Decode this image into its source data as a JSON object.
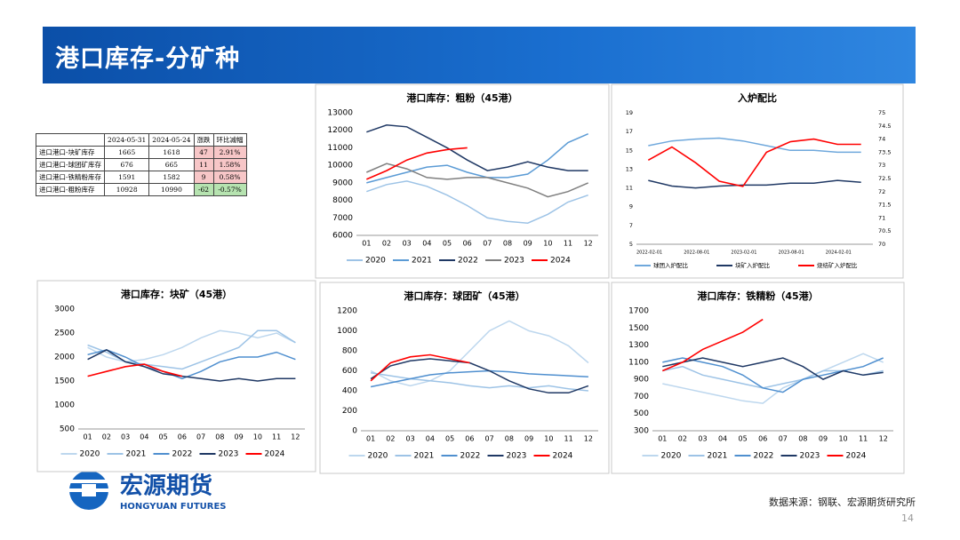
{
  "header": {
    "title": "港口库存-分矿种"
  },
  "table": {
    "header": [
      "2024-05-31",
      "2024-05-24",
      "涨跌",
      "环比减幅"
    ],
    "rows": [
      [
        "进口港口-块矿库存",
        "1665",
        "1618",
        "47",
        "2.91%"
      ],
      [
        "进口港口-球团矿库存",
        "676",
        "665",
        "11",
        "1.58%"
      ],
      [
        "进口港口-铁精粉库存",
        "1591",
        "1582",
        "9",
        "0.58%"
      ],
      [
        "进口港口-粗粉库存",
        "10928",
        "10990",
        "-62",
        "-0.57%"
      ]
    ]
  },
  "footer": {
    "logo_cn": "宏源期货",
    "logo_en": "HONGYUAN FUTURES",
    "source": "数据来源：钢联、宏源期货研究所",
    "page": "14"
  },
  "chart_data": [
    {
      "type": "line",
      "title": "港口库存：粗粉（45港）",
      "categories": [
        "01",
        "02",
        "03",
        "04",
        "05",
        "06",
        "07",
        "08",
        "09",
        "10",
        "11",
        "12"
      ],
      "ylim": [
        6000,
        13000
      ],
      "yticks": [
        6000,
        7000,
        8000,
        9000,
        10000,
        11000,
        12000,
        13000
      ],
      "grid": false,
      "series": [
        {
          "name": "2020",
          "color": "#9dc3e6",
          "values": [
            8500,
            8900,
            9100,
            8800,
            8300,
            7700,
            7000,
            6800,
            6700,
            7200,
            7900,
            8300
          ]
        },
        {
          "name": "2021",
          "color": "#5b9bd5",
          "values": [
            9000,
            9300,
            9600,
            9900,
            10000,
            9600,
            9300,
            9300,
            9500,
            10300,
            11300,
            11800
          ]
        },
        {
          "name": "2022",
          "color": "#1f3864",
          "values": [
            11900,
            12300,
            12200,
            11600,
            11000,
            10300,
            9700,
            9900,
            10200,
            9900,
            9700,
            9700
          ]
        },
        {
          "name": "2023",
          "color": "#7f7f7f",
          "values": [
            9600,
            10100,
            9800,
            9300,
            9200,
            9300,
            9300,
            9000,
            8700,
            8200,
            8500,
            9000
          ]
        },
        {
          "name": "2024",
          "color": "#ff0000",
          "values": [
            9200,
            9700,
            10300,
            10700,
            10900,
            11000,
            null,
            null,
            null,
            null,
            null,
            null
          ]
        }
      ]
    },
    {
      "type": "line",
      "title": "入炉配比",
      "categories": [
        "2022-02-01",
        null,
        "2022-08-01",
        null,
        "2023-02-01",
        null,
        "2023-08-01",
        null,
        "2024-02-01",
        null
      ],
      "ylim": [
        5,
        19
      ],
      "yticks": [
        5,
        7,
        9,
        11,
        13,
        15,
        17,
        19
      ],
      "y2lim": [
        70,
        75
      ],
      "y2ticks": [
        70,
        70.5,
        71,
        71.5,
        72,
        72.5,
        73,
        73.5,
        74,
        74.5,
        75
      ],
      "grid": false,
      "series": [
        {
          "name": "球团入炉配比",
          "color": "#6fa8dc",
          "values": [
            15.5,
            16,
            16.2,
            16.3,
            16,
            15.5,
            15,
            15,
            14.8,
            14.8
          ]
        },
        {
          "name": "块矿入炉配比",
          "color": "#1f3864",
          "values": [
            11.8,
            11.2,
            11,
            11.2,
            11.3,
            11.3,
            11.5,
            11.5,
            11.8,
            11.6
          ]
        },
        {
          "name": "烧结矿入炉配比",
          "color": "#ff0000",
          "axis": "y2",
          "values": [
            73.2,
            73.7,
            73.1,
            72.4,
            72.2,
            73.5,
            73.9,
            74,
            73.8,
            73.8
          ]
        }
      ]
    },
    {
      "type": "line",
      "title": "港口库存：块矿（45港）",
      "categories": [
        "01",
        "02",
        "03",
        "04",
        "05",
        "06",
        "07",
        "08",
        "09",
        "10",
        "11",
        "12"
      ],
      "ylim": [
        500,
        3000
      ],
      "yticks": [
        500,
        1000,
        1500,
        2000,
        2500,
        3000
      ],
      "grid": false,
      "series": [
        {
          "name": "2020",
          "color": "#bdd7ee",
          "values": [
            2200,
            2000,
            1900,
            1950,
            2050,
            2200,
            2400,
            2550,
            2500,
            2400,
            2500,
            2300
          ]
        },
        {
          "name": "2021",
          "color": "#9dc3e6",
          "values": [
            2250,
            2100,
            1900,
            1850,
            1800,
            1750,
            1900,
            2050,
            2200,
            2550,
            2550,
            2300
          ]
        },
        {
          "name": "2022",
          "color": "#4f8fcf",
          "values": [
            2050,
            2150,
            2000,
            1800,
            1700,
            1550,
            1700,
            1900,
            2000,
            2000,
            2100,
            1950
          ]
        },
        {
          "name": "2023",
          "color": "#1f3864",
          "values": [
            1950,
            2150,
            1900,
            1800,
            1650,
            1600,
            1550,
            1500,
            1550,
            1500,
            1550,
            1550
          ]
        },
        {
          "name": "2024",
          "color": "#ff0000",
          "values": [
            1600,
            1700,
            1800,
            1850,
            1700,
            1600,
            null,
            null,
            null,
            null,
            null,
            null
          ]
        }
      ]
    },
    {
      "type": "line",
      "title": "港口库存：球团矿（45港）",
      "categories": [
        "01",
        "02",
        "03",
        "04",
        "05",
        "06",
        "07",
        "08",
        "09",
        "10",
        "11",
        "12"
      ],
      "ylim": [
        0,
        1200
      ],
      "yticks": [
        0,
        200,
        400,
        600,
        800,
        1000,
        1200
      ],
      "grid": false,
      "series": [
        {
          "name": "2020",
          "color": "#bdd7ee",
          "values": [
            600,
            500,
            450,
            500,
            600,
            800,
            1000,
            1100,
            1000,
            950,
            850,
            680
          ]
        },
        {
          "name": "2021",
          "color": "#9dc3e6",
          "values": [
            580,
            550,
            520,
            500,
            480,
            450,
            430,
            450,
            430,
            450,
            420,
            400
          ]
        },
        {
          "name": "2022",
          "color": "#4f8fcf",
          "values": [
            440,
            480,
            520,
            560,
            580,
            590,
            600,
            590,
            570,
            560,
            550,
            540
          ]
        },
        {
          "name": "2023",
          "color": "#1f3864",
          "values": [
            520,
            650,
            700,
            720,
            700,
            680,
            600,
            500,
            420,
            380,
            380,
            450
          ]
        },
        {
          "name": "2024",
          "color": "#ff0000",
          "values": [
            500,
            680,
            740,
            760,
            720,
            680,
            null,
            null,
            null,
            null,
            null,
            null
          ]
        }
      ]
    },
    {
      "type": "line",
      "title": "港口库存：铁精粉（45港）",
      "categories": [
        "01",
        "02",
        "03",
        "04",
        "05",
        "06",
        "07",
        "08",
        "09",
        "10",
        "11",
        "12"
      ],
      "ylim": [
        300,
        1700
      ],
      "yticks": [
        300,
        500,
        700,
        900,
        1100,
        1300,
        1500,
        1700
      ],
      "grid": false,
      "series": [
        {
          "name": "2020",
          "color": "#bdd7ee",
          "values": [
            850,
            800,
            750,
            700,
            650,
            620,
            800,
            900,
            1000,
            1100,
            1200,
            1100
          ]
        },
        {
          "name": "2021",
          "color": "#9dc3e6",
          "values": [
            1000,
            1050,
            950,
            900,
            850,
            800,
            850,
            900,
            1000,
            1000,
            950,
            1000
          ]
        },
        {
          "name": "2022",
          "color": "#4f8fcf",
          "values": [
            1100,
            1150,
            1100,
            1050,
            950,
            800,
            750,
            900,
            950,
            1000,
            1050,
            1150
          ]
        },
        {
          "name": "2023",
          "color": "#1f3864",
          "values": [
            1050,
            1100,
            1150,
            1100,
            1050,
            1100,
            1150,
            1050,
            900,
            1000,
            950,
            980
          ]
        },
        {
          "name": "2024",
          "color": "#ff0000",
          "values": [
            1000,
            1100,
            1250,
            1350,
            1450,
            1600,
            null,
            null,
            null,
            null,
            null,
            null
          ]
        }
      ]
    }
  ]
}
